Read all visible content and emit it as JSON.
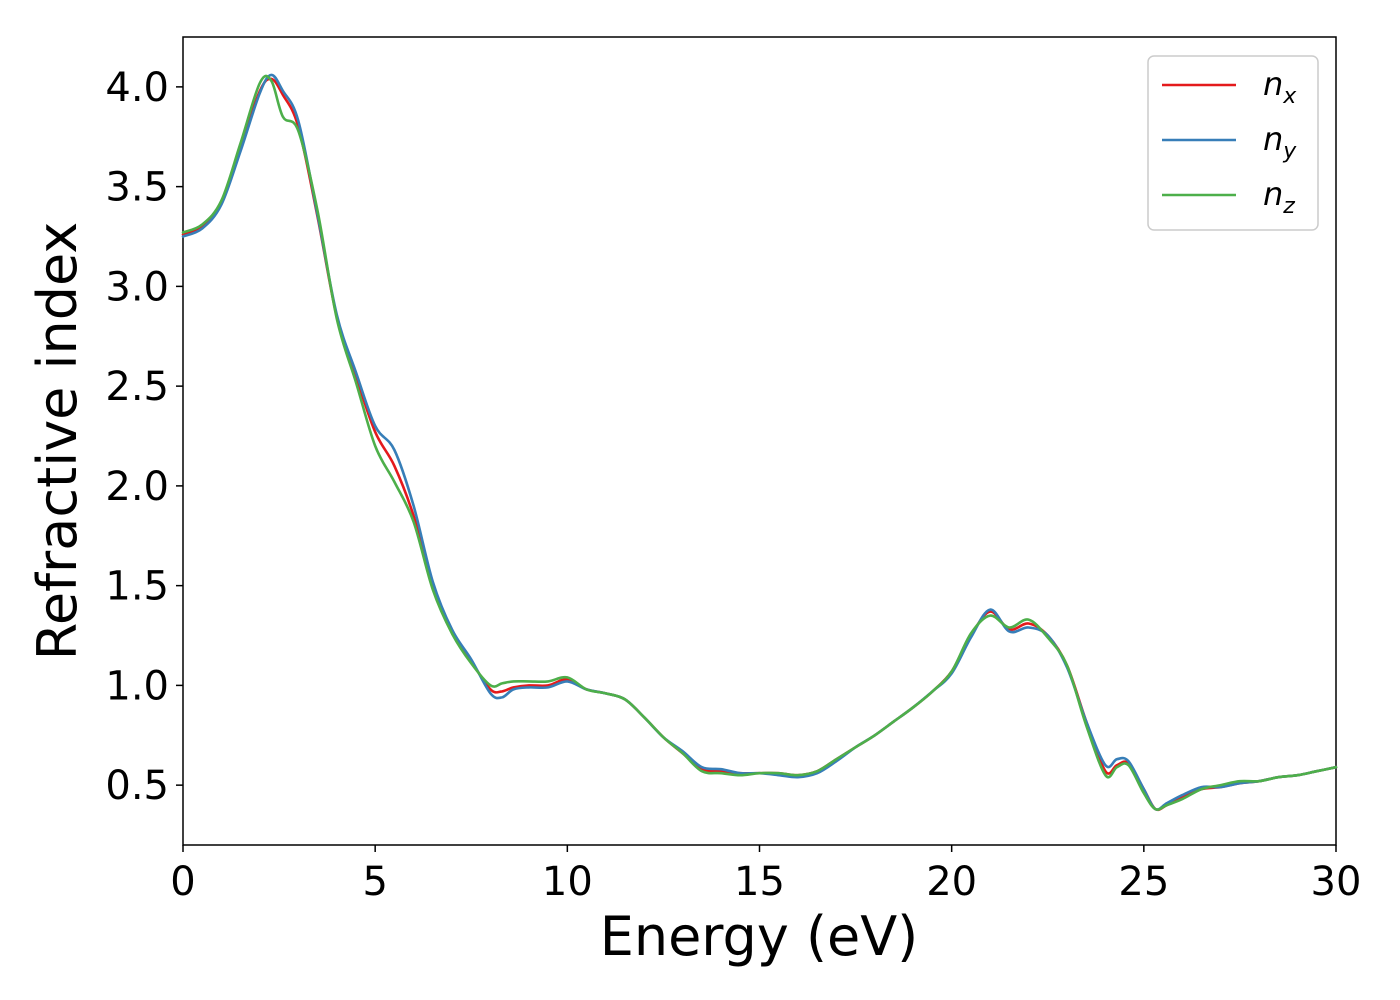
{
  "chart_data": {
    "type": "line",
    "xlabel": "Energy (eV)",
    "ylabel": "Refractive index",
    "xlim": [
      0,
      30
    ],
    "ylim": [
      0.2,
      4.25
    ],
    "xticks": [
      0,
      5,
      10,
      15,
      20,
      25,
      30
    ],
    "xtick_labels": [
      "0",
      "5",
      "10",
      "15",
      "20",
      "25",
      "30"
    ],
    "yticks": [
      0.5,
      1.0,
      1.5,
      2.0,
      2.5,
      3.0,
      3.5,
      4.0
    ],
    "ytick_labels": [
      "0.5",
      "1.0",
      "1.5",
      "2.0",
      "2.5",
      "3.0",
      "3.5",
      "4.0"
    ],
    "grid": false,
    "legend_position": "top-right",
    "series": [
      {
        "name": "n",
        "subscript": "x",
        "color": "#e41a1c",
        "x": [
          0,
          0.5,
          1.0,
          1.5,
          2.0,
          2.3,
          2.6,
          3.0,
          3.5,
          4.0,
          4.5,
          5.0,
          5.5,
          6.0,
          6.5,
          7.0,
          7.5,
          8.0,
          8.3,
          8.6,
          9.0,
          9.5,
          10.0,
          10.5,
          11.0,
          11.5,
          12.0,
          12.5,
          13.0,
          13.5,
          14.0,
          14.5,
          15.0,
          15.5,
          16.0,
          16.5,
          17.0,
          17.5,
          18.0,
          18.5,
          19.0,
          19.5,
          20.0,
          20.5,
          21.0,
          21.5,
          22.0,
          22.5,
          23.0,
          23.5,
          24.0,
          24.3,
          24.6,
          25.0,
          25.3,
          25.6,
          26.0,
          26.5,
          27.0,
          27.5,
          28.0,
          28.5,
          29.0,
          29.5,
          30.0
        ],
        "y": [
          3.26,
          3.3,
          3.42,
          3.7,
          3.98,
          4.04,
          3.96,
          3.8,
          3.35,
          2.85,
          2.55,
          2.27,
          2.1,
          1.85,
          1.5,
          1.27,
          1.12,
          0.98,
          0.97,
          0.99,
          1.0,
          1.0,
          1.03,
          0.98,
          0.96,
          0.93,
          0.84,
          0.74,
          0.66,
          0.58,
          0.57,
          0.56,
          0.56,
          0.56,
          0.55,
          0.57,
          0.63,
          0.69,
          0.75,
          0.82,
          0.89,
          0.97,
          1.07,
          1.25,
          1.37,
          1.28,
          1.31,
          1.25,
          1.1,
          0.82,
          0.57,
          0.6,
          0.61,
          0.48,
          0.38,
          0.4,
          0.44,
          0.48,
          0.49,
          0.51,
          0.52,
          0.54,
          0.55,
          0.57,
          0.59
        ]
      },
      {
        "name": "n",
        "subscript": "y",
        "color": "#377eb8",
        "x": [
          0,
          0.5,
          1.0,
          1.5,
          2.0,
          2.3,
          2.6,
          3.0,
          3.5,
          4.0,
          4.5,
          5.0,
          5.5,
          6.0,
          6.5,
          7.0,
          7.5,
          8.0,
          8.3,
          8.6,
          9.0,
          9.5,
          10.0,
          10.5,
          11.0,
          11.5,
          12.0,
          12.5,
          13.0,
          13.5,
          14.0,
          14.5,
          15.0,
          15.5,
          16.0,
          16.5,
          17.0,
          17.5,
          18.0,
          18.5,
          19.0,
          19.5,
          20.0,
          20.5,
          21.0,
          21.5,
          22.0,
          22.5,
          23.0,
          23.5,
          24.0,
          24.3,
          24.6,
          25.0,
          25.3,
          25.6,
          26.0,
          26.5,
          27.0,
          27.5,
          28.0,
          28.5,
          29.0,
          29.5,
          30.0
        ],
        "y": [
          3.25,
          3.29,
          3.41,
          3.68,
          3.97,
          4.06,
          3.98,
          3.83,
          3.36,
          2.86,
          2.57,
          2.3,
          2.18,
          1.9,
          1.52,
          1.28,
          1.13,
          0.96,
          0.94,
          0.98,
          0.99,
          0.99,
          1.02,
          0.98,
          0.96,
          0.93,
          0.84,
          0.74,
          0.67,
          0.59,
          0.58,
          0.56,
          0.56,
          0.55,
          0.54,
          0.56,
          0.62,
          0.69,
          0.75,
          0.82,
          0.89,
          0.97,
          1.06,
          1.24,
          1.38,
          1.27,
          1.29,
          1.25,
          1.09,
          0.82,
          0.6,
          0.63,
          0.62,
          0.48,
          0.38,
          0.41,
          0.45,
          0.49,
          0.49,
          0.51,
          0.52,
          0.54,
          0.55,
          0.57,
          0.59
        ]
      },
      {
        "name": "n",
        "subscript": "z",
        "color": "#4daf4a",
        "x": [
          0,
          0.5,
          1.0,
          1.5,
          2.0,
          2.3,
          2.6,
          3.0,
          3.5,
          4.0,
          4.5,
          5.0,
          5.5,
          6.0,
          6.5,
          7.0,
          7.5,
          8.0,
          8.3,
          8.6,
          9.0,
          9.5,
          10.0,
          10.5,
          11.0,
          11.5,
          12.0,
          12.5,
          13.0,
          13.5,
          14.0,
          14.5,
          15.0,
          15.5,
          16.0,
          16.5,
          17.0,
          17.5,
          18.0,
          18.5,
          19.0,
          19.5,
          20.0,
          20.5,
          21.0,
          21.5,
          22.0,
          22.5,
          23.0,
          23.5,
          24.0,
          24.3,
          24.6,
          25.0,
          25.3,
          25.6,
          26.0,
          26.5,
          27.0,
          27.5,
          28.0,
          28.5,
          29.0,
          29.5,
          30.0
        ],
        "y": [
          3.27,
          3.31,
          3.43,
          3.72,
          4.02,
          4.03,
          3.85,
          3.78,
          3.38,
          2.84,
          2.52,
          2.2,
          2.02,
          1.82,
          1.48,
          1.26,
          1.11,
          1.0,
          1.01,
          1.02,
          1.02,
          1.02,
          1.04,
          0.98,
          0.96,
          0.93,
          0.84,
          0.74,
          0.66,
          0.57,
          0.56,
          0.55,
          0.56,
          0.56,
          0.55,
          0.57,
          0.63,
          0.69,
          0.75,
          0.82,
          0.89,
          0.97,
          1.07,
          1.26,
          1.35,
          1.29,
          1.33,
          1.24,
          1.1,
          0.8,
          0.55,
          0.59,
          0.6,
          0.46,
          0.38,
          0.4,
          0.43,
          0.48,
          0.5,
          0.52,
          0.52,
          0.54,
          0.55,
          0.57,
          0.59
        ]
      }
    ]
  }
}
